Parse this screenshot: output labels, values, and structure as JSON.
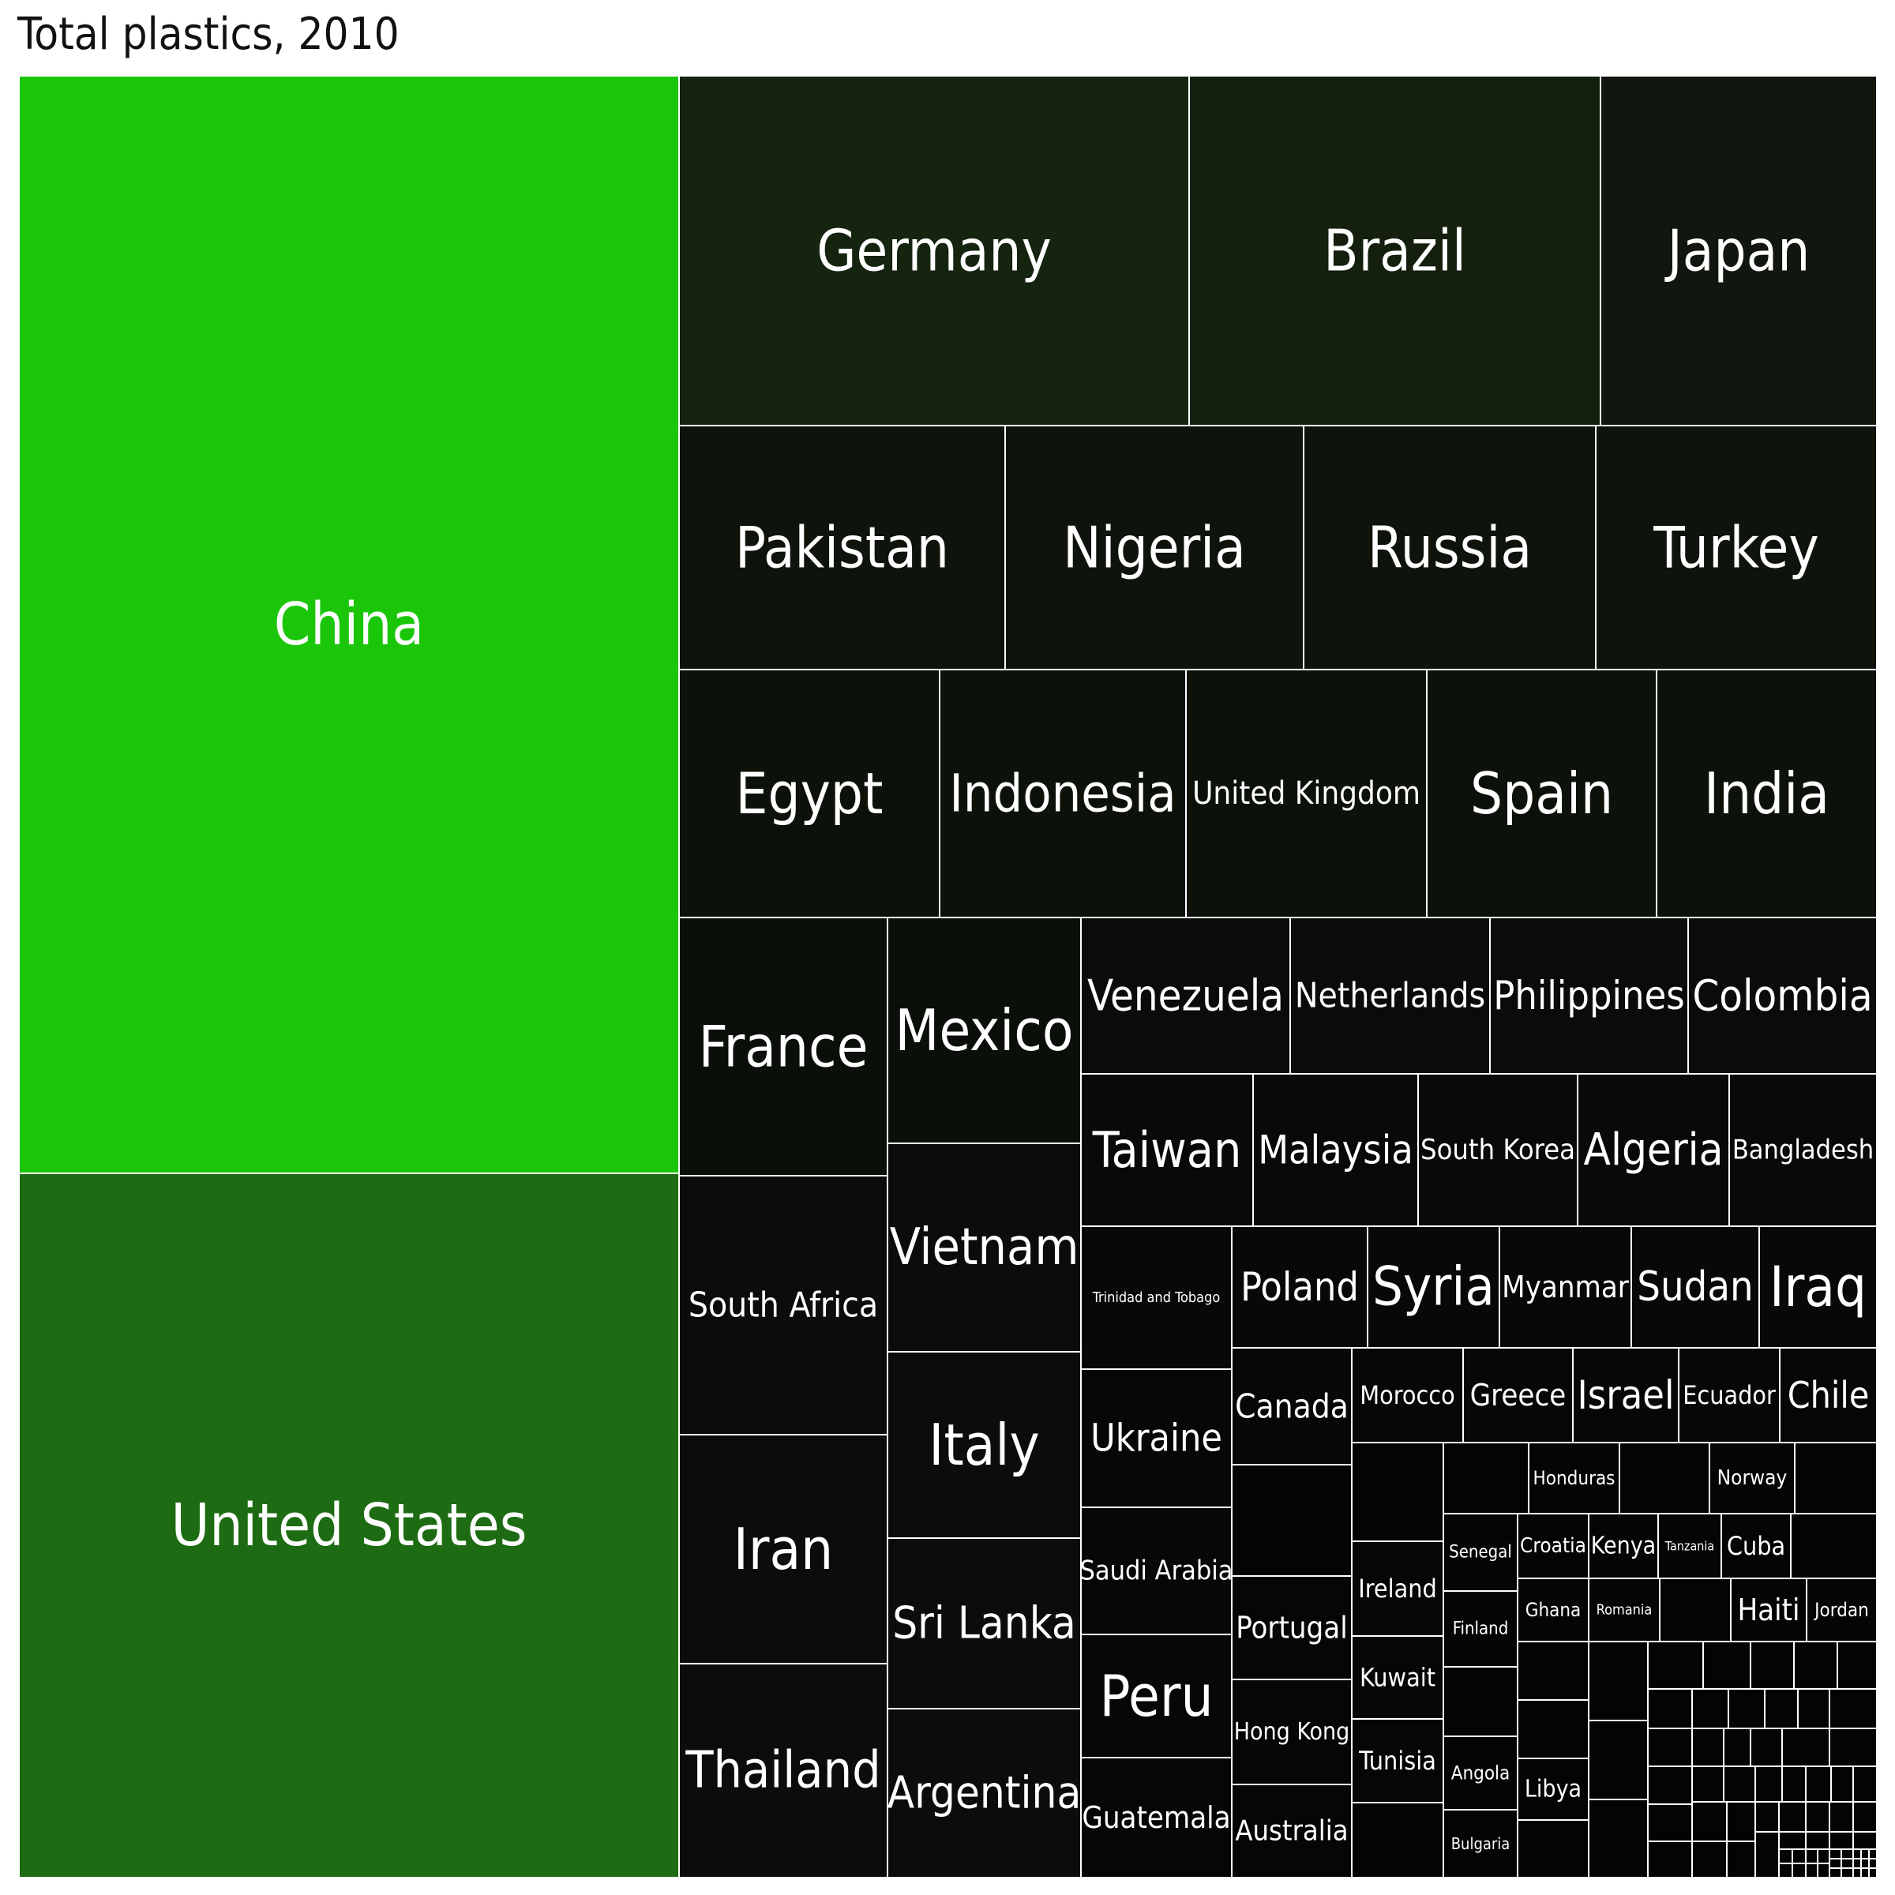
{
  "chart_data": {
    "type": "treemap",
    "title": "Total plastics, 2010",
    "legend": "none",
    "cells": [
      {
        "label": "China",
        "color": "#1bc60a"
      },
      {
        "label": "United States",
        "color": "#1d6b12"
      },
      {
        "label": "Germany",
        "color": "#15240f"
      },
      {
        "label": "Brazil",
        "color": "#141f0e"
      },
      {
        "label": "Japan",
        "color": "#11170e"
      },
      {
        "label": "Pakistan",
        "color": "#0e140c"
      },
      {
        "label": "Nigeria",
        "color": "#0e140c"
      },
      {
        "label": "Russia",
        "color": "#0e140c"
      },
      {
        "label": "Turkey",
        "color": "#0e140c"
      },
      {
        "label": "Egypt",
        "color": "#0c110a"
      },
      {
        "label": "Indonesia",
        "color": "#0c110a"
      },
      {
        "label": "United Kingdom",
        "color": "#0c110a"
      },
      {
        "label": "Spain",
        "color": "#0c110a"
      },
      {
        "label": "India",
        "color": "#0c110a"
      },
      {
        "label": "France",
        "color": "#0b0f0a"
      },
      {
        "label": "Mexico",
        "color": "#0b0f0a"
      },
      {
        "label": "South Africa",
        "color": "#0a0d09"
      },
      {
        "label": "Vietnam",
        "color": "#0a0d09"
      },
      {
        "label": "Iran",
        "color": "#0a0d09"
      },
      {
        "label": "Italy",
        "color": "#0a0d09"
      },
      {
        "label": "Thailand",
        "color": "#0a0d09"
      },
      {
        "label": "Sri Lanka",
        "color": "#0a0d09"
      },
      {
        "label": "Argentina",
        "color": "#0a0d09"
      },
      {
        "label": "Venezuela",
        "color": "#090c08"
      },
      {
        "label": "Netherlands",
        "color": "#090c08"
      },
      {
        "label": "Philippines",
        "color": "#090c08"
      },
      {
        "label": "Colombia",
        "color": "#090c08"
      },
      {
        "label": "Taiwan",
        "color": "#080a07"
      },
      {
        "label": "Malaysia",
        "color": "#080a07"
      },
      {
        "label": "South Korea",
        "color": "#080a07"
      },
      {
        "label": "Algeria",
        "color": "#080a07"
      },
      {
        "label": "Bangladesh",
        "color": "#080a07"
      },
      {
        "label": "Trinidad and Tobago",
        "color": "#070907"
      },
      {
        "label": "Poland",
        "color": "#070907"
      },
      {
        "label": "Syria",
        "color": "#070907"
      },
      {
        "label": "Myanmar",
        "color": "#070907"
      },
      {
        "label": "Sudan",
        "color": "#070907"
      },
      {
        "label": "Iraq",
        "color": "#070907"
      },
      {
        "label": "Ukraine",
        "color": "#060806"
      },
      {
        "label": "Canada",
        "color": "#060806"
      },
      {
        "label": "Morocco",
        "color": "#060806"
      },
      {
        "label": "Greece",
        "color": "#060806"
      },
      {
        "label": "Israel",
        "color": "#060806"
      },
      {
        "label": "Ecuador",
        "color": "#060806"
      },
      {
        "label": "Chile",
        "color": "#060806"
      },
      {
        "label": "Saudi Arabia",
        "color": "#060806"
      },
      {
        "label": "Peru",
        "color": "#060806"
      },
      {
        "label": "Guatemala",
        "color": "#050705"
      },
      {
        "label": "Portugal",
        "color": "#050705"
      },
      {
        "label": "Hong Kong",
        "color": "#050705"
      },
      {
        "label": "Australia",
        "color": "#050705"
      },
      {
        "label": "Ireland",
        "color": "#050705"
      },
      {
        "label": "Kuwait",
        "color": "#050705"
      },
      {
        "label": "Tunisia",
        "color": "#050705"
      },
      {
        "label": "Honduras",
        "color": "#040504"
      },
      {
        "label": "Norway",
        "color": "#040504"
      },
      {
        "label": "Senegal",
        "color": "#040504"
      },
      {
        "label": "Croatia",
        "color": "#040504"
      },
      {
        "label": "Kenya",
        "color": "#040504"
      },
      {
        "label": "Tanzania",
        "color": "#040504"
      },
      {
        "label": "Cuba",
        "color": "#040504"
      },
      {
        "label": "Finland",
        "color": "#040504"
      },
      {
        "label": "Ghana",
        "color": "#040504"
      },
      {
        "label": "Romania",
        "color": "#040504"
      },
      {
        "label": "Haiti",
        "color": "#040504"
      },
      {
        "label": "Jordan",
        "color": "#040504"
      },
      {
        "label": "Angola",
        "color": "#030403"
      },
      {
        "label": "Libya",
        "color": "#030403"
      },
      {
        "label": "Bulgaria",
        "color": "#030403"
      },
      {
        "label": "",
        "color": "#030403"
      }
    ]
  }
}
